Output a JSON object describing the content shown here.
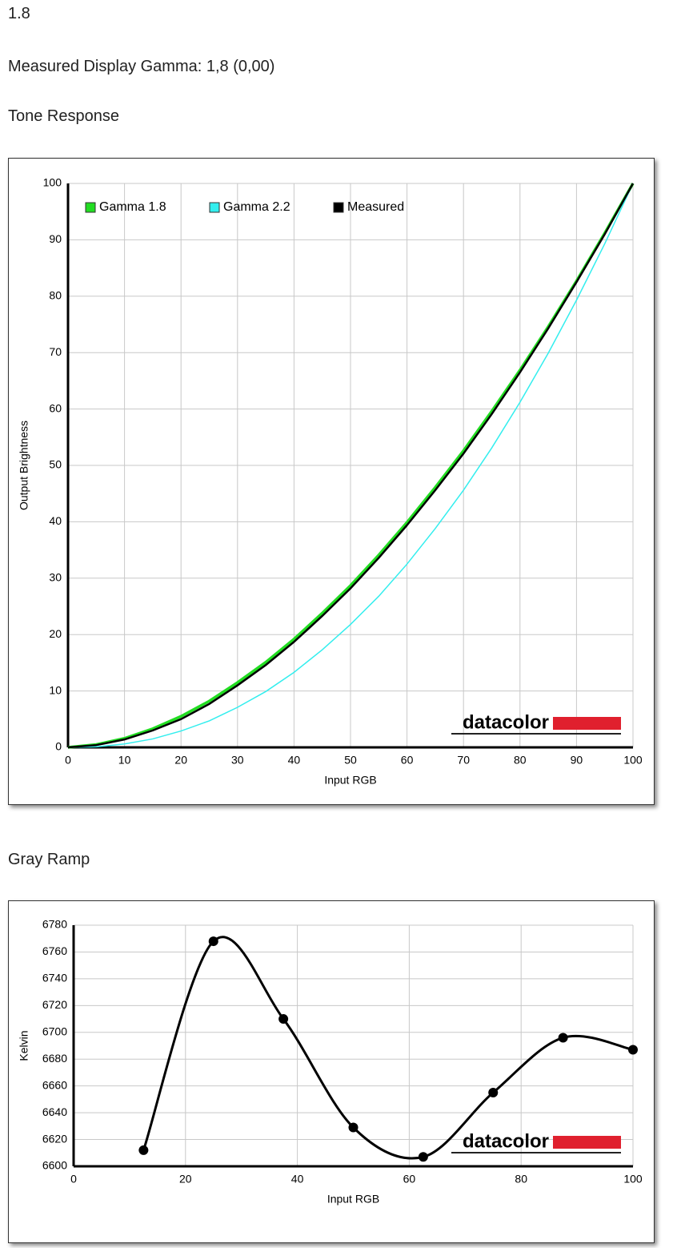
{
  "header": {
    "gamma": "1.8",
    "measured": "Measured Display Gamma: 1,8 (0,00)"
  },
  "chart_data": [
    {
      "type": "line",
      "title": "Tone Response",
      "x_label": "Input RGB",
      "y_label": "Output Brightness",
      "watermark": "datacolor",
      "x": [
        0,
        5,
        10,
        15,
        20,
        25,
        30,
        35,
        40,
        45,
        50,
        55,
        60,
        65,
        70,
        75,
        80,
        85,
        90,
        95,
        100
      ],
      "series": [
        {
          "name": "Gamma 1.8",
          "color": "#22dd22",
          "values": [
            0,
            0.5,
            1.6,
            3.3,
            5.5,
            8.2,
            11.5,
            15.1,
            19.2,
            23.8,
            28.7,
            34.1,
            39.9,
            46.1,
            52.6,
            59.6,
            66.9,
            74.6,
            82.7,
            91.2,
            100
          ]
        },
        {
          "name": "Gamma 2.2",
          "color": "#33eeee",
          "values": [
            0,
            0.1,
            0.6,
            1.5,
            2.9,
            4.7,
            7.1,
            9.9,
            13.3,
            17.3,
            21.8,
            26.8,
            32.5,
            38.8,
            45.6,
            53.1,
            61.2,
            69.9,
            79.3,
            89.3,
            100
          ]
        },
        {
          "name": "Measured",
          "color": "#000000",
          "values": [
            0,
            0.4,
            1.4,
            3.0,
            5.0,
            7.7,
            11.0,
            14.6,
            18.7,
            23.3,
            28.2,
            33.6,
            39.4,
            45.6,
            52.1,
            59.1,
            66.5,
            74.3,
            82.5,
            91.0,
            100
          ]
        }
      ],
      "xlim": [
        0,
        100
      ],
      "xticks": [
        0,
        10,
        20,
        30,
        40,
        50,
        60,
        70,
        80,
        90,
        100
      ],
      "ylim": [
        0,
        100
      ],
      "yticks": [
        0,
        10,
        20,
        30,
        40,
        50,
        60,
        70,
        80,
        90,
        100
      ],
      "grid": true,
      "legend": "top-left"
    },
    {
      "type": "line",
      "title": "Gray Ramp",
      "x_label": "Input RGB",
      "y_label": "Kelvin",
      "watermark": "datacolor",
      "x": [
        12.5,
        25,
        37.5,
        50,
        62.5,
        75,
        87.5,
        100
      ],
      "series": [
        {
          "color": "#000000",
          "values": [
            6612,
            6768,
            6710,
            6629,
            6607,
            6655,
            6696,
            6687
          ]
        }
      ],
      "xlim": [
        0,
        100
      ],
      "xticks": [
        0,
        20,
        40,
        60,
        80,
        100
      ],
      "ylim": [
        6600,
        6780
      ],
      "yticks": [
        6600,
        6620,
        6640,
        6660,
        6680,
        6700,
        6720,
        6740,
        6760,
        6780
      ],
      "grid": true,
      "smooth": true,
      "markers": true
    }
  ]
}
